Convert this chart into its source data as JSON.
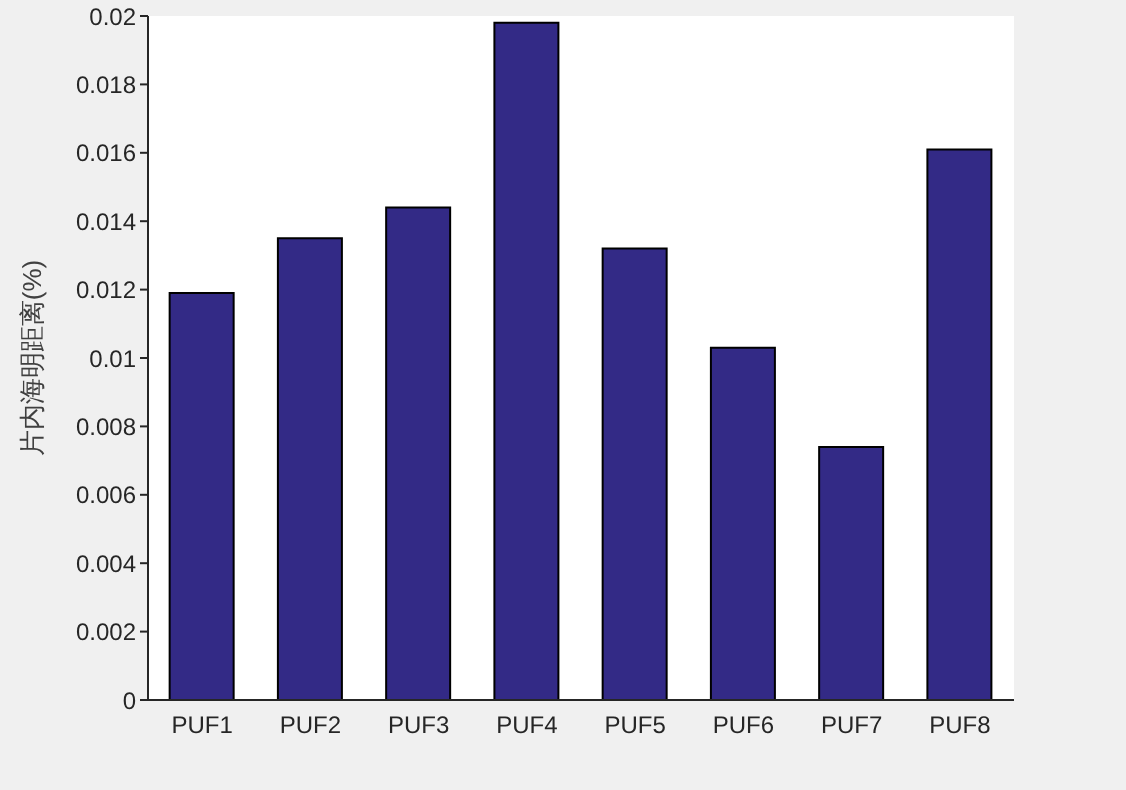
{
  "chart_data": {
    "type": "bar",
    "ylabel": "片内海明距离(%)",
    "categories": [
      "PUF1",
      "PUF2",
      "PUF3",
      "PUF4",
      "PUF5",
      "PUF6",
      "PUF7",
      "PUF8"
    ],
    "values": [
      0.0119,
      0.0135,
      0.0144,
      0.0198,
      0.0132,
      0.0103,
      0.0074,
      0.0161
    ],
    "color": "#332a86",
    "ylim": [
      0,
      0.02
    ],
    "yticks": [
      0,
      0.002,
      0.004,
      0.006,
      0.008,
      0.01,
      0.012,
      0.014,
      0.016,
      0.018,
      0.02
    ],
    "grid": false
  }
}
